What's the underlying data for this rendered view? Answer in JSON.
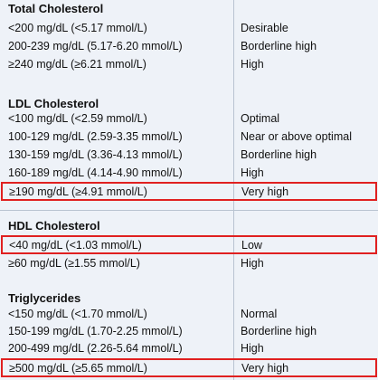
{
  "sections": [
    {
      "title": "Total Cholesterol",
      "rows": [
        {
          "range": "<200 mg/dL (<5.17 mmol/L)",
          "classification": "Desirable",
          "highlighted": false
        },
        {
          "range": "200-239 mg/dL (5.17-6.20 mmol/L)",
          "classification": "Borderline high",
          "highlighted": false
        },
        {
          "range": "≥240 mg/dL (≥6.21 mmol/L)",
          "classification": "High",
          "highlighted": false
        }
      ]
    },
    {
      "title": "LDL Cholesterol",
      "rows": [
        {
          "range": "<100 mg/dL (<2.59 mmol/L)",
          "classification": "Optimal",
          "highlighted": false
        },
        {
          "range": "100-129 mg/dL (2.59-3.35 mmol/L)",
          "classification": "Near or above optimal",
          "highlighted": false
        },
        {
          "range": "130-159 mg/dL (3.36-4.13 mmol/L)",
          "classification": "Borderline high",
          "highlighted": false
        },
        {
          "range": "160-189 mg/dL (4.14-4.90 mmol/L)",
          "classification": "High",
          "highlighted": false
        },
        {
          "range": "≥190 mg/dL (≥4.91 mmol/L)",
          "classification": "Very high",
          "highlighted": true
        }
      ]
    },
    {
      "title": "HDL Cholesterol",
      "rows": [
        {
          "range": "<40 mg/dL (<1.03 mmol/L)",
          "classification": "Low",
          "highlighted": true
        },
        {
          "range": "≥60 mg/dL (≥1.55 mmol/L)",
          "classification": "High",
          "highlighted": false
        }
      ]
    },
    {
      "title": "Triglycerides",
      "rows": [
        {
          "range": "<150 mg/dL (<1.70 mmol/L)",
          "classification": "Normal",
          "highlighted": false
        },
        {
          "range": "150-199 mg/dL (1.70-2.25 mmol/L)",
          "classification": "Borderline high",
          "highlighted": false
        },
        {
          "range": "200-499 mg/dL (2.26-5.64 mmol/L)",
          "classification": "High",
          "highlighted": false
        },
        {
          "range": "≥500 mg/dL (≥5.65 mmol/L)",
          "classification": "Very high",
          "highlighted": true
        }
      ]
    }
  ],
  "colors": {
    "background": "#eef2f8",
    "highlight_border": "#e02020",
    "divider": "#b9c3d1",
    "text": "#111111"
  }
}
